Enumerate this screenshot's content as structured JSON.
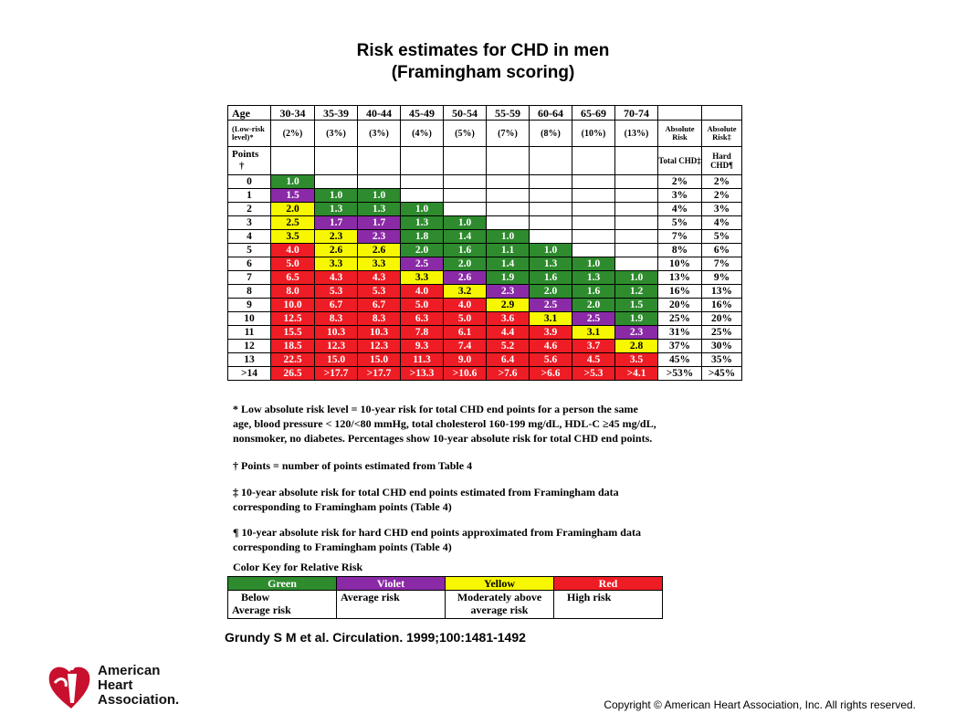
{
  "title_line1": "Risk estimates for CHD in men",
  "title_line2": "(Framingham scoring)",
  "table": {
    "age_label": "Age",
    "age_groups": [
      "30-34",
      "35-39",
      "40-44",
      "45-49",
      "50-54",
      "55-59",
      "60-64",
      "65-69",
      "70-74"
    ],
    "low_risk_label": "(Low-risk level)*",
    "low_risk_values": [
      "(2%)",
      "(3%)",
      "(3%)",
      "(4%)",
      "(5%)",
      "(7%)",
      "(8%)",
      "(10%)",
      "(13%)"
    ],
    "absolute_risk_total_header": "Absolute Risk",
    "absolute_risk_total_sub": "Total CHD‡",
    "absolute_risk_hard_header": "Absolute Risk‡",
    "absolute_risk_hard_sub": "Hard CHD¶",
    "points_label": "Points",
    "points_dagger": "†",
    "rows": [
      {
        "points": "0",
        "cells": [
          [
            "1.0",
            "G"
          ],
          [
            "",
            ""
          ],
          [
            "",
            ""
          ],
          [
            "",
            ""
          ],
          [
            "",
            ""
          ],
          [
            "",
            ""
          ],
          [
            "",
            ""
          ],
          [
            "",
            ""
          ],
          [
            "",
            ""
          ]
        ],
        "total": "2%",
        "hard": "2%"
      },
      {
        "points": "1",
        "cells": [
          [
            "1.5",
            "V"
          ],
          [
            "1.0",
            "G"
          ],
          [
            "1.0",
            "G"
          ],
          [
            "",
            ""
          ],
          [
            "",
            ""
          ],
          [
            "",
            ""
          ],
          [
            "",
            ""
          ],
          [
            "",
            ""
          ],
          [
            "",
            ""
          ]
        ],
        "total": "3%",
        "hard": "2%"
      },
      {
        "points": "2",
        "cells": [
          [
            "2.0",
            "Y"
          ],
          [
            "1.3",
            "G"
          ],
          [
            "1.3",
            "G"
          ],
          [
            "1.0",
            "G"
          ],
          [
            "",
            ""
          ],
          [
            "",
            ""
          ],
          [
            "",
            ""
          ],
          [
            "",
            ""
          ],
          [
            "",
            ""
          ]
        ],
        "total": "4%",
        "hard": "3%"
      },
      {
        "points": "3",
        "cells": [
          [
            "2.5",
            "Y"
          ],
          [
            "1.7",
            "V"
          ],
          [
            "1.7",
            "V"
          ],
          [
            "1.3",
            "G"
          ],
          [
            "1.0",
            "G"
          ],
          [
            "",
            ""
          ],
          [
            "",
            ""
          ],
          [
            "",
            ""
          ],
          [
            "",
            ""
          ]
        ],
        "total": "5%",
        "hard": "4%"
      },
      {
        "points": "4",
        "cells": [
          [
            "3.5",
            "Y"
          ],
          [
            "2.3",
            "Y"
          ],
          [
            "2.3",
            "V"
          ],
          [
            "1.8",
            "G"
          ],
          [
            "1.4",
            "G"
          ],
          [
            "1.0",
            "G"
          ],
          [
            "",
            ""
          ],
          [
            "",
            ""
          ],
          [
            "",
            ""
          ]
        ],
        "total": "7%",
        "hard": "5%"
      },
      {
        "points": "5",
        "cells": [
          [
            "4.0",
            "R"
          ],
          [
            "2.6",
            "Y"
          ],
          [
            "2.6",
            "Y"
          ],
          [
            "2.0",
            "G"
          ],
          [
            "1.6",
            "G"
          ],
          [
            "1.1",
            "G"
          ],
          [
            "1.0",
            "G"
          ],
          [
            "",
            ""
          ],
          [
            "",
            ""
          ]
        ],
        "total": "8%",
        "hard": "6%"
      },
      {
        "points": "6",
        "cells": [
          [
            "5.0",
            "R"
          ],
          [
            "3.3",
            "Y"
          ],
          [
            "3.3",
            "Y"
          ],
          [
            "2.5",
            "V"
          ],
          [
            "2.0",
            "G"
          ],
          [
            "1.4",
            "G"
          ],
          [
            "1.3",
            "G"
          ],
          [
            "1.0",
            "G"
          ],
          [
            "",
            ""
          ]
        ],
        "total": "10%",
        "hard": "7%"
      },
      {
        "points": "7",
        "cells": [
          [
            "6.5",
            "R"
          ],
          [
            "4.3",
            "R"
          ],
          [
            "4.3",
            "R"
          ],
          [
            "3.3",
            "Y"
          ],
          [
            "2.6",
            "V"
          ],
          [
            "1.9",
            "G"
          ],
          [
            "1.6",
            "G"
          ],
          [
            "1.3",
            "G"
          ],
          [
            "1.0",
            "G"
          ]
        ],
        "total": "13%",
        "hard": "9%"
      },
      {
        "points": "8",
        "cells": [
          [
            "8.0",
            "R"
          ],
          [
            "5.3",
            "R"
          ],
          [
            "5.3",
            "R"
          ],
          [
            "4.0",
            "R"
          ],
          [
            "3.2",
            "Y"
          ],
          [
            "2.3",
            "V"
          ],
          [
            "2.0",
            "G"
          ],
          [
            "1.6",
            "G"
          ],
          [
            "1.2",
            "G"
          ]
        ],
        "total": "16%",
        "hard": "13%"
      },
      {
        "points": "9",
        "cells": [
          [
            "10.0",
            "R"
          ],
          [
            "6.7",
            "R"
          ],
          [
            "6.7",
            "R"
          ],
          [
            "5.0",
            "R"
          ],
          [
            "4.0",
            "R"
          ],
          [
            "2.9",
            "Y"
          ],
          [
            "2.5",
            "V"
          ],
          [
            "2.0",
            "G"
          ],
          [
            "1.5",
            "G"
          ]
        ],
        "total": "20%",
        "hard": "16%"
      },
      {
        "points": "10",
        "cells": [
          [
            "12.5",
            "R"
          ],
          [
            "8.3",
            "R"
          ],
          [
            "8.3",
            "R"
          ],
          [
            "6.3",
            "R"
          ],
          [
            "5.0",
            "R"
          ],
          [
            "3.6",
            "R"
          ],
          [
            "3.1",
            "Y"
          ],
          [
            "2.5",
            "V"
          ],
          [
            "1.9",
            "G"
          ]
        ],
        "total": "25%",
        "hard": "20%"
      },
      {
        "points": "11",
        "cells": [
          [
            "15.5",
            "R"
          ],
          [
            "10.3",
            "R"
          ],
          [
            "10.3",
            "R"
          ],
          [
            "7.8",
            "R"
          ],
          [
            "6.1",
            "R"
          ],
          [
            "4.4",
            "R"
          ],
          [
            "3.9",
            "R"
          ],
          [
            "3.1",
            "Y"
          ],
          [
            "2.3",
            "V"
          ]
        ],
        "total": "31%",
        "hard": "25%"
      },
      {
        "points": "12",
        "cells": [
          [
            "18.5",
            "R"
          ],
          [
            "12.3",
            "R"
          ],
          [
            "12.3",
            "R"
          ],
          [
            "9.3",
            "R"
          ],
          [
            "7.4",
            "R"
          ],
          [
            "5.2",
            "R"
          ],
          [
            "4.6",
            "R"
          ],
          [
            "3.7",
            "R"
          ],
          [
            "2.8",
            "Y"
          ]
        ],
        "total": "37%",
        "hard": "30%"
      },
      {
        "points": "13",
        "cells": [
          [
            "22.5",
            "R"
          ],
          [
            "15.0",
            "R"
          ],
          [
            "15.0",
            "R"
          ],
          [
            "11.3",
            "R"
          ],
          [
            "9.0",
            "R"
          ],
          [
            "6.4",
            "R"
          ],
          [
            "5.6",
            "R"
          ],
          [
            "4.5",
            "R"
          ],
          [
            "3.5",
            "R"
          ]
        ],
        "total": "45%",
        "hard": "35%"
      },
      {
        "points": ">14",
        "cells": [
          [
            "26.5",
            "R"
          ],
          [
            ">17.7",
            "R"
          ],
          [
            ">17.7",
            "R"
          ],
          [
            ">13.3",
            "R"
          ],
          [
            ">10.6",
            "R"
          ],
          [
            ">7.6",
            "R"
          ],
          [
            ">6.6",
            "R"
          ],
          [
            ">5.3",
            "R"
          ],
          [
            ">4.1",
            "R"
          ]
        ],
        "total": ">53%",
        "hard": ">45%"
      }
    ]
  },
  "footnotes": {
    "asterisk_line1": "*   Low absolute risk level = 10-year risk for total CHD end points for a person the same",
    "asterisk_line2": "age, blood pressure < 120/<80 mmHg, total cholesterol 160-199 mg/dL, HDL-C  ≥45 mg/dL,",
    "asterisk_line3": "nonsmoker, no diabetes.  Percentages show 10-year absolute risk for total CHD end points.",
    "dagger": "†     Points = number of points estimated from Table 4",
    "ddagger_line1": "‡     10-year absolute risk for total CHD end points estimated from Framingham data",
    "ddagger_line2": "corresponding to Framingham points (Table 4)",
    "pilcrow_line1": "¶     10-year absolute risk for hard CHD end points approximated from Framingham data",
    "pilcrow_line2": "corresponding to Framingham points (Table 4)"
  },
  "color_key": {
    "title": "Color Key for Relative Risk",
    "items": [
      {
        "swatch": "Green",
        "desc_line1": "Below",
        "desc_line2": "Average risk",
        "color": "#2e8b2e"
      },
      {
        "swatch": "Violet",
        "desc_line1": "Average risk",
        "desc_line2": "",
        "color": "#8a2aa6"
      },
      {
        "swatch": "Yellow",
        "desc_line1": "Moderately above",
        "desc_line2": "average risk",
        "color": "#f7f700"
      },
      {
        "swatch": "Red",
        "desc_line1": "High risk",
        "desc_line2": "",
        "color": "#ee1c24"
      }
    ]
  },
  "citation": "Grundy S M et al. Circulation. 1999;100:1481-1492",
  "copyright": "Copyright © American Heart Association, Inc. All rights reserved.",
  "logo": {
    "line1": "American",
    "line2": "Heart",
    "line3": "Association.",
    "icon": "heart-torch-icon"
  }
}
